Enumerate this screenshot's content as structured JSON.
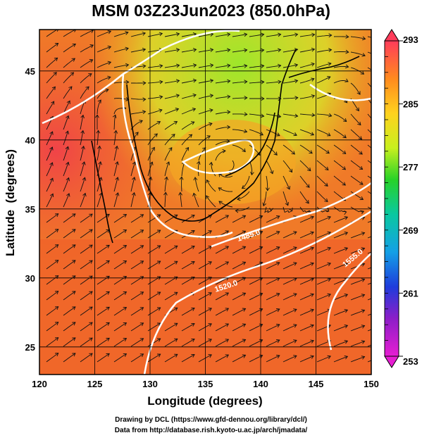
{
  "title": "MSM 03Z23Jun2023 (850.0hPa)",
  "map": {
    "lon_range": [
      120,
      150
    ],
    "lat_range": [
      23,
      48
    ],
    "x_ticks": [
      120,
      125,
      130,
      135,
      140,
      145,
      150
    ],
    "y_ticks": [
      25,
      30,
      35,
      40,
      45
    ],
    "x_label": "Longitude (degrees)",
    "y_label": "Latitude  (degrees)",
    "grid": true,
    "contour_labels": [
      "1485.0",
      "1520.0",
      "1555.0"
    ]
  },
  "colorbar": {
    "min": 253,
    "max": 293,
    "tick_labels": [
      "293",
      "285",
      "277",
      "269",
      "261",
      "253"
    ],
    "colors": [
      "#ff3c5a",
      "#ff8a1e",
      "#ffd21e",
      "#c8f01e",
      "#28d228",
      "#0ac8a0",
      "#14a0e6",
      "#1e3cdc",
      "#8c1ec8",
      "#e61ed2"
    ]
  },
  "footer": {
    "line1": "Drawing by DCL (https://www.gfd-dennou.org/library/dcl/)",
    "line2": "Data from http://database.rish.kyoto-u.ac.jp/arch/jmadata/"
  }
}
